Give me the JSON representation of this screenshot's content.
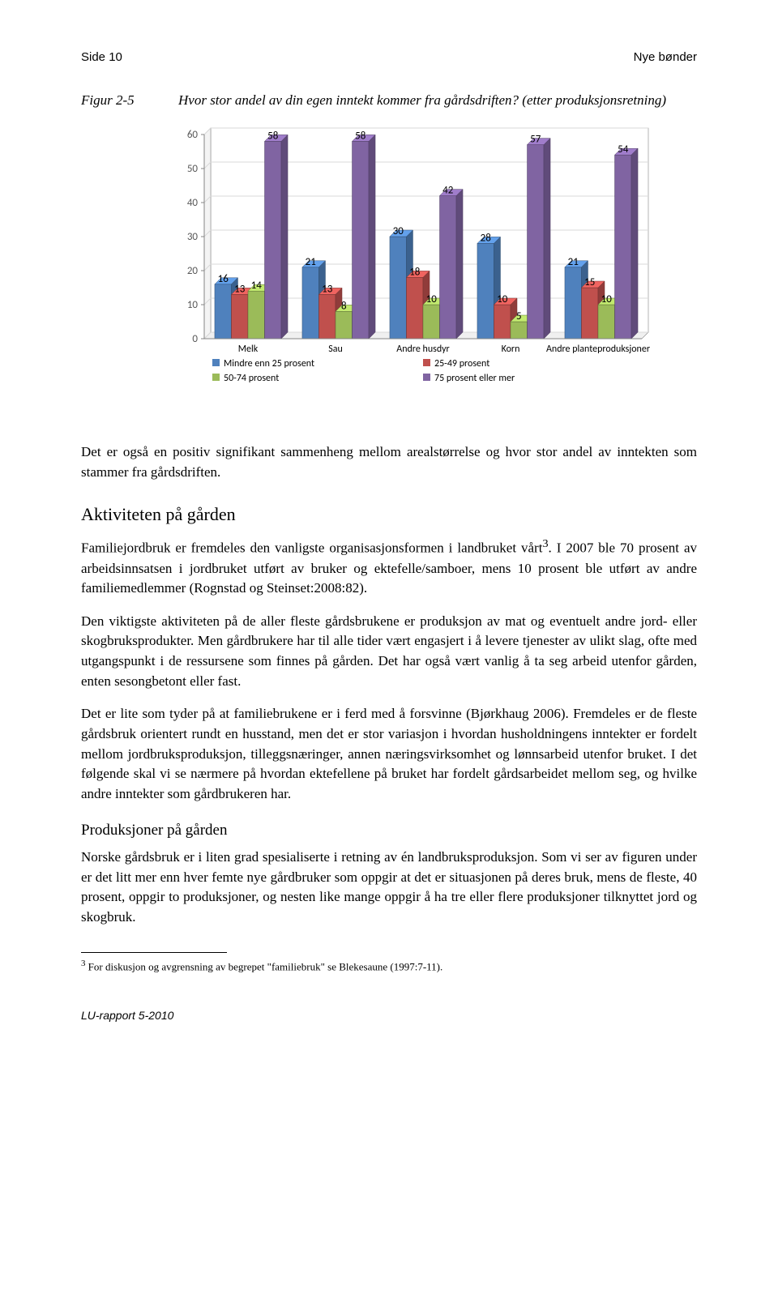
{
  "header": {
    "left": "Side 10",
    "right": "Nye bønder"
  },
  "figure": {
    "label": "Figur 2-5",
    "caption": "Hvor stor andel av din egen inntekt kommer fra gårdsdriften? (etter produksjonsretning)"
  },
  "chart": {
    "type": "grouped-bar-3d",
    "categories": [
      "Melk",
      "Sau",
      "Andre husdyr",
      "Korn",
      "Andre planteproduksjoner"
    ],
    "series": [
      {
        "name": "Mindre enn 25 prosent",
        "color": "#4f81bd",
        "values": [
          16,
          21,
          30,
          28,
          21
        ]
      },
      {
        "name": "25-49 prosent",
        "color": "#c0504d",
        "values": [
          13,
          13,
          18,
          10,
          15
        ]
      },
      {
        "name": "50-74 prosent",
        "color": "#9bbb59",
        "values": [
          14,
          8,
          10,
          5,
          10
        ]
      },
      {
        "name": "75 prosent eller mer",
        "color": "#8064a2",
        "values": [
          58,
          58,
          42,
          57,
          54
        ]
      }
    ],
    "ylim": [
      0,
      60
    ],
    "ytick_step": 10,
    "axis_color": "#868686",
    "grid_color": "#d9d9d9",
    "tick_fontsize": 13,
    "label_fontsize": 12,
    "legend_fontsize": 12,
    "plot_bg": "#ffffff",
    "value_labels_show": true,
    "legend_markers": "square"
  },
  "paras": {
    "p1": "Det er også en positiv signifikant sammenheng mellom arealstørrelse og hvor stor andel av inntekten som stammer fra gårdsdriften.",
    "h2": "Aktiviteten på gården",
    "p2a": "Familiejordbruk er fremdeles den vanligste organisasjonsformen i landbruket vårt",
    "p2sup": "3",
    "p2b": ". I 2007 ble 70 prosent av arbeidsinnsatsen i jordbruket utført av bruker og ektefelle/samboer, mens 10 prosent ble utført av andre familiemedlemmer (Rognstad og Steinset:2008:82).",
    "p3": "Den viktigste aktiviteten på de aller fleste gårdsbrukene er produksjon av mat og eventuelt andre jord- eller skogbruksprodukter. Men gårdbrukere har til alle tider vært engasjert i å levere tjenester av ulikt slag, ofte med utgangspunkt i de ressursene som finnes på gården. Det har også vært vanlig å ta seg arbeid utenfor gården, enten sesongbetont eller fast.",
    "p4": "Det er lite som tyder på at familiebrukene er i ferd med å forsvinne (Bjørkhaug 2006). Fremdeles er de fleste gårdsbruk orientert rundt en husstand, men det er stor variasjon i hvordan husholdningens inntekter er fordelt mellom jordbruksproduksjon, tilleggsnæringer, annen næringsvirksomhet og lønnsarbeid utenfor bruket. I det følgende skal vi se nærmere på hvordan ektefellene på bruket har fordelt gårdsarbeidet mellom seg, og hvilke andre inntekter som gårdbrukeren har.",
    "h3": "Produksjoner på gården",
    "p5": "Norske gårdsbruk er i liten grad spesialiserte i retning av én landbruksproduksjon. Som vi ser av figuren under er det litt mer enn hver femte nye gårdbruker som oppgir at det er situasjonen på deres bruk, mens de fleste, 40 prosent, oppgir to produksjoner, og nesten like mange oppgir å ha tre eller flere produksjoner tilknyttet jord og skogbruk."
  },
  "footnote": {
    "marker": "3",
    "text": " For diskusjon og avgrensning av begrepet \"familiebruk\" se Blekesaune (1997:7-11)."
  },
  "footer": "LU-rapport 5-2010"
}
